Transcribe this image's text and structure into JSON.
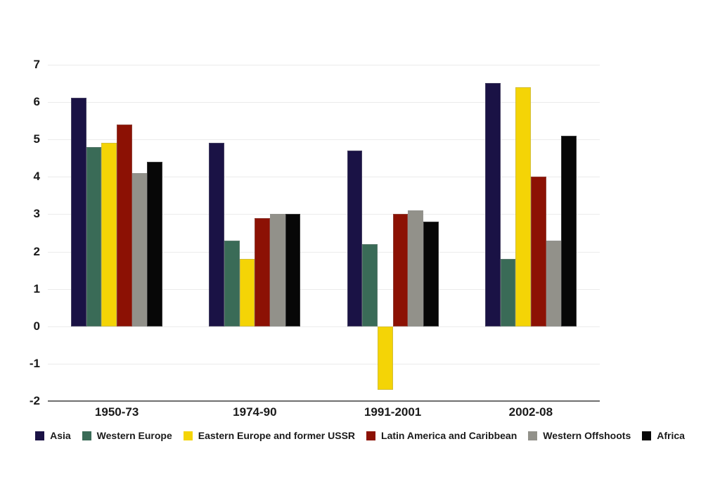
{
  "chart_data": {
    "type": "bar",
    "title": "",
    "xlabel": "",
    "ylabel": "",
    "categories": [
      "1950-73",
      "1974-90",
      "1991-2001",
      "2002-08"
    ],
    "series": [
      {
        "name": "Asia",
        "color": "#1a1245",
        "values": [
          6.1,
          4.9,
          4.7,
          6.5
        ]
      },
      {
        "name": "Western Europe",
        "color": "#3a6b57",
        "values": [
          4.8,
          2.3,
          2.2,
          1.8
        ]
      },
      {
        "name": "Eastern Europe and former USSR",
        "color": "#f4d406",
        "values": [
          4.9,
          1.8,
          -1.7,
          6.4
        ]
      },
      {
        "name": "Latin America and Caribbean",
        "color": "#8c1104",
        "values": [
          5.4,
          2.9,
          3.0,
          4.0
        ]
      },
      {
        "name": "Western Offshoots",
        "color": "#92918a",
        "values": [
          4.1,
          3.0,
          3.1,
          2.3
        ]
      },
      {
        "name": "Africa",
        "color": "#070707",
        "values": [
          4.4,
          3.0,
          2.8,
          5.1
        ]
      }
    ],
    "ylim": [
      -2,
      7
    ],
    "yticks": [
      7,
      6,
      5,
      4,
      3,
      2,
      1,
      0,
      -1,
      -2
    ],
    "grid": true,
    "legend_position": "bottom",
    "background_color": "#ffffff",
    "text_color": "#1a1a1a",
    "gridline_color": "#ebebeb",
    "axis_line_color": "#6e6e6e"
  }
}
